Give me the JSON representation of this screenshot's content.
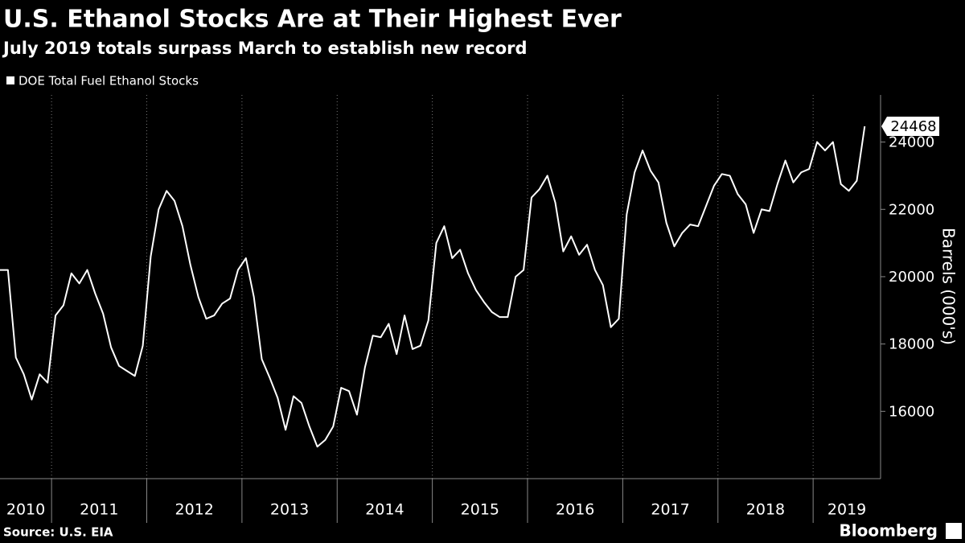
{
  "chart_data": {
    "type": "line",
    "title": "U.S. Ethanol Stocks Are at Their Highest Ever",
    "subtitle": "July 2019 totals surpass March to establish new record",
    "y_label": "Barrels (000's)",
    "source": "Source: U.S. EIA",
    "logo": "Bloomberg",
    "x": [
      "2010-06",
      "2010-07",
      "2010-08",
      "2010-09",
      "2010-10",
      "2010-11",
      "2010-12",
      "2011-01",
      "2011-02",
      "2011-03",
      "2011-04",
      "2011-05",
      "2011-06",
      "2011-07",
      "2011-08",
      "2011-09",
      "2011-10",
      "2011-11",
      "2011-12",
      "2012-01",
      "2012-02",
      "2012-03",
      "2012-04",
      "2012-05",
      "2012-06",
      "2012-07",
      "2012-08",
      "2012-09",
      "2012-10",
      "2012-11",
      "2012-12",
      "2013-01",
      "2013-02",
      "2013-03",
      "2013-04",
      "2013-05",
      "2013-06",
      "2013-07",
      "2013-08",
      "2013-09",
      "2013-10",
      "2013-11",
      "2013-12",
      "2014-01",
      "2014-02",
      "2014-03",
      "2014-04",
      "2014-05",
      "2014-06",
      "2014-07",
      "2014-08",
      "2014-09",
      "2014-10",
      "2014-11",
      "2014-12",
      "2015-01",
      "2015-02",
      "2015-03",
      "2015-04",
      "2015-05",
      "2015-06",
      "2015-07",
      "2015-08",
      "2015-09",
      "2015-10",
      "2015-11",
      "2015-12",
      "2016-01",
      "2016-02",
      "2016-03",
      "2016-04",
      "2016-05",
      "2016-06",
      "2016-07",
      "2016-08",
      "2016-09",
      "2016-10",
      "2016-11",
      "2016-12",
      "2017-01",
      "2017-02",
      "2017-03",
      "2017-04",
      "2017-05",
      "2017-06",
      "2017-07",
      "2017-08",
      "2017-09",
      "2017-10",
      "2017-11",
      "2017-12",
      "2018-01",
      "2018-02",
      "2018-03",
      "2018-04",
      "2018-05",
      "2018-06",
      "2018-07",
      "2018-08",
      "2018-09",
      "2018-10",
      "2018-11",
      "2018-12",
      "2019-01",
      "2019-02",
      "2019-03",
      "2019-04",
      "2019-05",
      "2019-06",
      "2019-07"
    ],
    "series": [
      {
        "name": "DOE Total Fuel Ethanol Stocks",
        "color": "#ffffff",
        "values": [
          20200,
          20200,
          17600,
          17100,
          16350,
          17100,
          16850,
          18850,
          19150,
          20100,
          19800,
          20200,
          19500,
          18900,
          17900,
          17350,
          17200,
          17050,
          17950,
          20600,
          22000,
          22550,
          22250,
          21500,
          20350,
          19400,
          18750,
          18850,
          19200,
          19350,
          20200,
          20550,
          19400,
          17550,
          17000,
          16400,
          15450,
          16450,
          16250,
          15550,
          14950,
          15150,
          15550,
          16700,
          16600,
          15900,
          17300,
          18250,
          18200,
          18600,
          17700,
          18850,
          17850,
          17950,
          18700,
          21000,
          21500,
          20550,
          20800,
          20100,
          19600,
          19250,
          18950,
          18800,
          18800,
          20000,
          20200,
          22350,
          22600,
          23000,
          22200,
          20750,
          21200,
          20650,
          20950,
          20200,
          19750,
          18500,
          18750,
          21850,
          23100,
          23750,
          23150,
          22800,
          21600,
          20900,
          21300,
          21550,
          21500,
          22100,
          22700,
          23050,
          23000,
          22450,
          22150,
          21300,
          22000,
          21950,
          22750,
          23450,
          22800,
          23100,
          23200,
          24000,
          23750,
          24000,
          22750,
          22550,
          22850,
          24468
        ]
      }
    ],
    "xlim": [
      "2010-06",
      "2019-09"
    ],
    "xticks": [
      "2010",
      "2011",
      "2012",
      "2013",
      "2014",
      "2015",
      "2016",
      "2017",
      "2018",
      "2019"
    ],
    "ylim": [
      14000,
      25400
    ],
    "yticks": [
      16000,
      18000,
      20000,
      22000,
      24000
    ],
    "last_value_label": true,
    "grid": "x"
  }
}
